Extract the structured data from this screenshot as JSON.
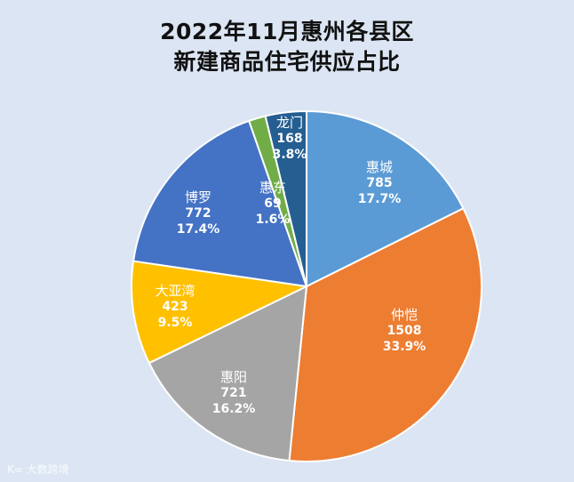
{
  "title_line1": "2022年11月惠州各县区",
  "title_line2": "新建商品住宅供应占比",
  "watermark": "K∞ 大数跨境",
  "chart_data": {
    "type": "pie",
    "title": "2022年11月惠州各县区新建商品住宅供应占比",
    "categories": [
      "惠城",
      "仲恺",
      "惠阳",
      "大亚湾",
      "博罗",
      "惠东",
      "龙门"
    ],
    "values": [
      785,
      1508,
      721,
      423,
      772,
      69,
      168
    ],
    "percentages": [
      "17.7%",
      "33.9%",
      "16.2%",
      "9.5%",
      "17.4%",
      "1.6%",
      "3.8%"
    ],
    "colors": [
      "#5b9bd5",
      "#ed7d31",
      "#a5a5a5",
      "#ffc000",
      "#4472c4",
      "#70ad47",
      "#255e91"
    ],
    "start_angle": "12 o'clock, clockwise",
    "legend": "none (data labels inside slices)"
  },
  "labels": [
    {
      "name": "惠城",
      "value": "785",
      "pct": "17.7%"
    },
    {
      "name": "仲恺",
      "value": "1508",
      "pct": "33.9%"
    },
    {
      "name": "惠阳",
      "value": "721",
      "pct": "16.2%"
    },
    {
      "name": "大亚湾",
      "value": "423",
      "pct": "9.5%"
    },
    {
      "name": "博罗",
      "value": "772",
      "pct": "17.4%"
    },
    {
      "name": "惠东",
      "value": "69",
      "pct": "1.6%"
    },
    {
      "name": "龙门",
      "value": "168",
      "pct": "3.8%"
    }
  ]
}
